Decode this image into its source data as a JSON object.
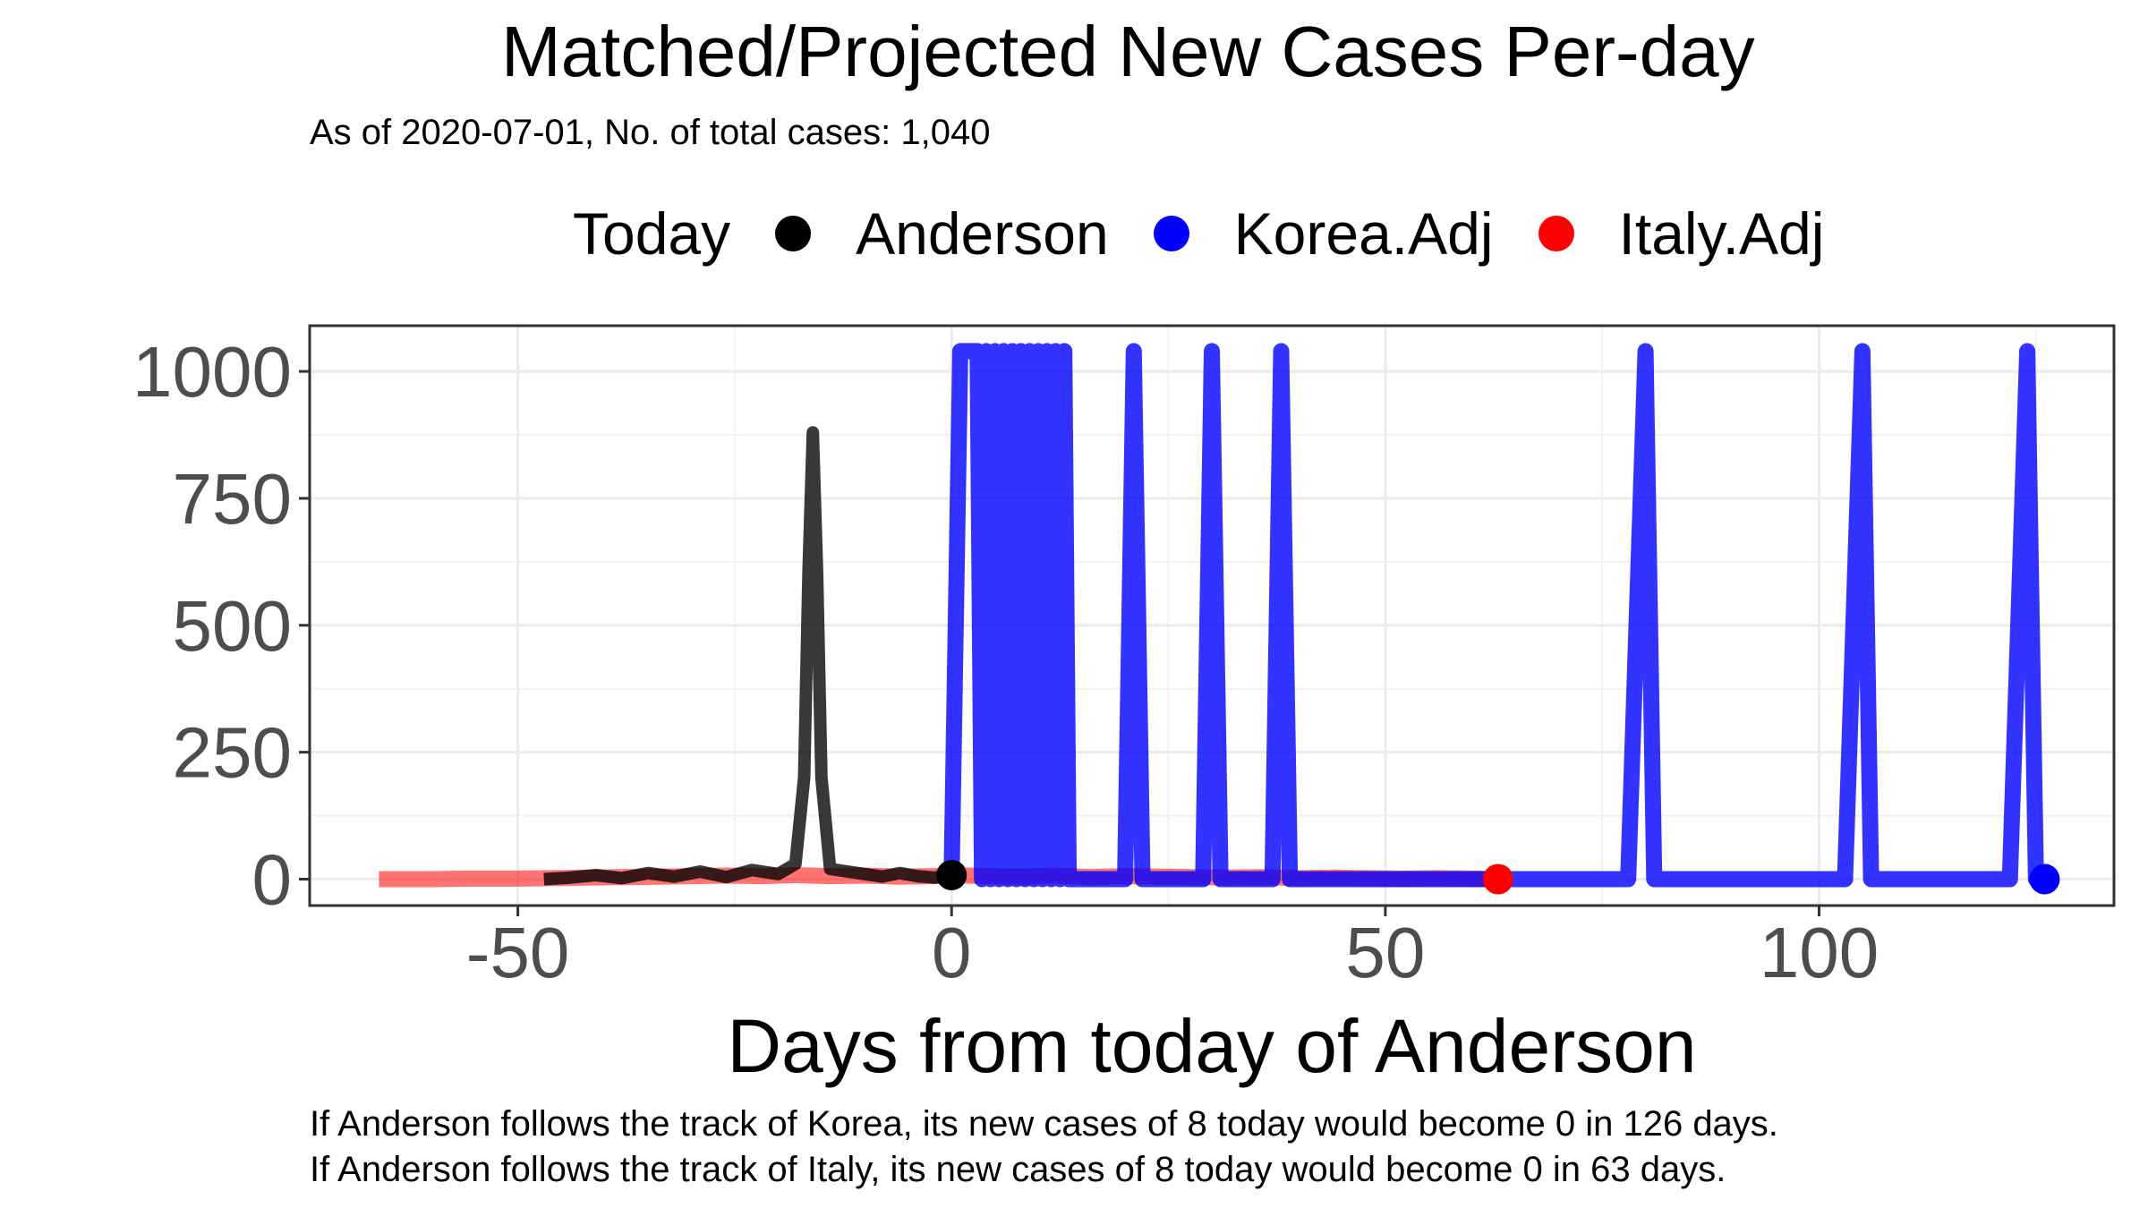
{
  "chart_data": {
    "type": "line",
    "title": "Matched/Projected New Cases Per-day",
    "subtitle": "As of 2020-07-01, No. of total cases: 1,040",
    "xlabel": "Days from today of Anderson",
    "ylabel": "",
    "xlim": [
      -74,
      134
    ],
    "ylim": [
      -52,
      1090
    ],
    "x_ticks": [
      -50,
      0,
      50,
      100
    ],
    "x_tick_labels": [
      "-50",
      "0",
      "50",
      "100"
    ],
    "y_ticks": [
      0,
      250,
      500,
      750,
      1000
    ],
    "y_tick_labels": [
      "0",
      "250",
      "500",
      "750",
      "1000"
    ],
    "grid": true,
    "legend": {
      "title": "Today",
      "placement": "top",
      "items": [
        {
          "label": "Anderson",
          "color": "#000000"
        },
        {
          "label": "Korea.Adj",
          "color": "#0000ff"
        },
        {
          "label": "Italy.Adj",
          "color": "#ff0000"
        }
      ]
    },
    "series": [
      {
        "name": "Italy.Adj",
        "color": "#ff0000",
        "x": [
          -66,
          -60,
          -55,
          -50,
          -46,
          -42,
          -38,
          -34,
          -30,
          -26,
          -22,
          -18,
          -14,
          -10,
          -6,
          -2,
          0,
          4,
          8,
          12,
          16,
          20,
          24,
          28,
          32,
          36,
          40,
          44,
          48,
          52,
          56,
          60,
          63
        ],
        "y": [
          0,
          0,
          1,
          1,
          2,
          3,
          4,
          5,
          6,
          7,
          6,
          8,
          6,
          7,
          5,
          6,
          8,
          6,
          5,
          7,
          4,
          6,
          5,
          4,
          3,
          4,
          2,
          3,
          2,
          1,
          2,
          1,
          0
        ]
      },
      {
        "name": "Anderson",
        "color": "#000000",
        "x": [
          -47,
          -44,
          -41,
          -38,
          -35,
          -32,
          -29,
          -26,
          -23,
          -20,
          -18,
          -17,
          -16.5,
          -16,
          -15.5,
          -15,
          -14,
          -12,
          -10,
          -8,
          -6,
          -4,
          -2,
          0
        ],
        "y": [
          0,
          3,
          8,
          2,
          12,
          5,
          15,
          4,
          18,
          10,
          30,
          200,
          600,
          880,
          600,
          200,
          20,
          15,
          10,
          5,
          12,
          6,
          3,
          8
        ]
      },
      {
        "name": "Korea.Adj",
        "color": "#0000ff",
        "x": [
          0,
          1,
          2,
          3,
          3.5,
          4,
          4.5,
          5,
          5.5,
          6,
          6.5,
          7,
          7.5,
          8,
          8.5,
          9,
          9.5,
          10,
          10.5,
          11,
          11.5,
          12,
          12.5,
          13,
          13.5,
          14,
          15,
          19,
          20,
          21,
          22,
          23,
          28,
          29,
          30,
          31,
          32,
          36,
          37,
          38,
          39,
          40,
          77,
          78,
          80,
          81,
          82,
          102,
          103,
          105,
          106,
          107,
          121,
          122,
          124,
          125,
          126
        ],
        "y": [
          0,
          1040,
          1040,
          1040,
          0,
          1040,
          0,
          1040,
          0,
          1040,
          0,
          1040,
          0,
          1040,
          0,
          1040,
          0,
          1040,
          0,
          1040,
          0,
          1040,
          0,
          1040,
          0,
          0,
          0,
          0,
          0,
          1040,
          0,
          0,
          0,
          0,
          1040,
          0,
          0,
          0,
          0,
          1040,
          0,
          0,
          0,
          0,
          1040,
          0,
          0,
          0,
          0,
          1040,
          0,
          0,
          0,
          0,
          1040,
          0,
          0
        ]
      }
    ],
    "today_points": [
      {
        "series": "Anderson",
        "x": 0,
        "y": 8
      },
      {
        "series": "Italy.Adj",
        "x": 63,
        "y": 0
      },
      {
        "series": "Korea.Adj",
        "x": 126,
        "y": 0
      }
    ]
  },
  "captions": {
    "korea": "If Anderson follows the track of Korea, its new cases of 8 today would become 0 in 126 days.",
    "italy": "If Anderson follows the track of Italy, its new cases of 8 today would become 0 in 63 days."
  }
}
